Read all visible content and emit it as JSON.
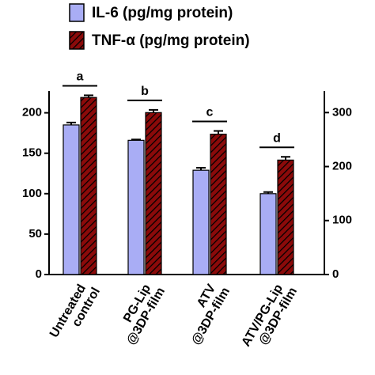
{
  "chart_data": {
    "type": "bar",
    "categories": [
      [
        "Untreated",
        "control"
      ],
      [
        "PG-Lip",
        "@3DP-film"
      ],
      [
        "ATV",
        "@3DP-film"
      ],
      [
        "ATV/PG-Lip",
        "@3DP-film"
      ]
    ],
    "series": [
      {
        "name": "IL-6 (pg/mg protein)",
        "color": "#a9adf5",
        "values": [
          185,
          166,
          129,
          100
        ],
        "errors": [
          3,
          1,
          3,
          2
        ]
      },
      {
        "name": "TNF-α (pg/mg protein)",
        "color": "#8b0a0a",
        "axis": "y2",
        "values": [
          328,
          300,
          260,
          212
        ],
        "errors": [
          4,
          5,
          6,
          6
        ]
      }
    ],
    "annotations": [
      "a",
      "b",
      "c",
      "d"
    ],
    "ylim": [
      0,
      227
    ],
    "yticks": [
      0,
      50,
      100,
      150,
      200
    ],
    "y2lim": [
      0,
      340
    ],
    "y2ticks": [
      0,
      100,
      200,
      300
    ],
    "legend": "top"
  }
}
